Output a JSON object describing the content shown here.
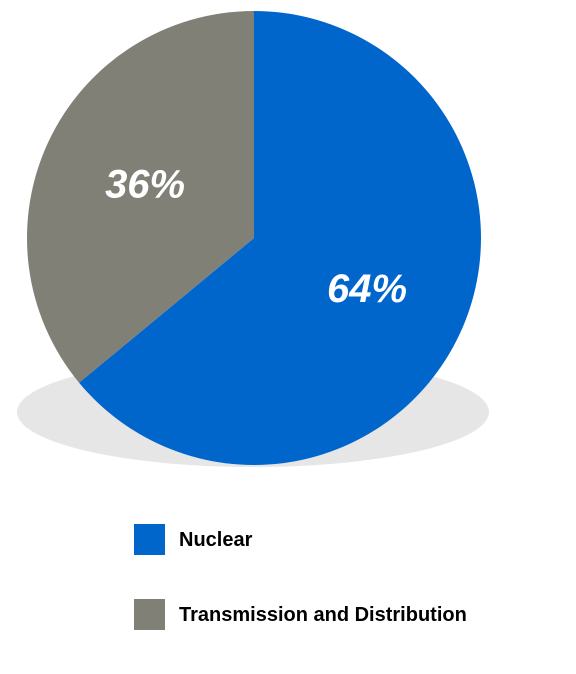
{
  "chart_data": {
    "type": "pie",
    "slices": [
      {
        "name": "Nuclear",
        "value": 64,
        "label": "64%",
        "color": "#0066CC"
      },
      {
        "name": "Transmission and Distribution",
        "value": 36,
        "label": "36%",
        "color": "#808077"
      }
    ],
    "legend_position": "bottom",
    "shadow_color": "#E6E6E6"
  },
  "legend": {
    "items": [
      {
        "label": "Nuclear",
        "color": "#0066CC"
      },
      {
        "label": "Transmission and Distribution",
        "color": "#808077"
      }
    ]
  }
}
